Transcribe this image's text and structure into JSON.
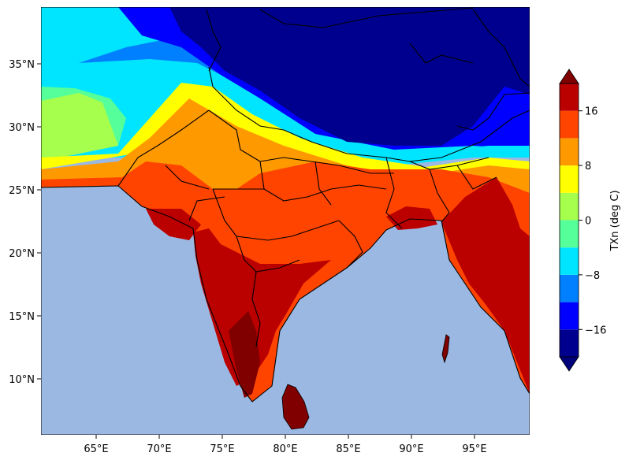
{
  "map": {
    "longitude_ticks": [
      "65°E",
      "70°E",
      "75°E",
      "80°E",
      "85°E",
      "90°E",
      "95°E"
    ],
    "latitude_ticks": [
      "35°N",
      "30°N",
      "25°N",
      "20°N",
      "15°N",
      "10°N"
    ],
    "ocean_color": "#9bb8e3"
  },
  "colorbar": {
    "label": "TXn (deg C)",
    "tick_labels": [
      "16",
      "8",
      "0",
      "−8",
      "−16"
    ],
    "tick_values": [
      16,
      8,
      0,
      -8,
      -16
    ],
    "min": -20,
    "max": 20,
    "levels": [
      -20,
      -16,
      -12,
      -8,
      -4,
      0,
      4,
      8,
      12,
      16,
      20
    ],
    "colors": [
      "#00008f",
      "#0000ff",
      "#0080ff",
      "#00e5ff",
      "#55ff99",
      "#a6ff4d",
      "#ffff00",
      "#ff9900",
      "#ff4400",
      "#bb0000"
    ],
    "extend_under_color": "#00007a",
    "extend_over_color": "#800000"
  }
}
